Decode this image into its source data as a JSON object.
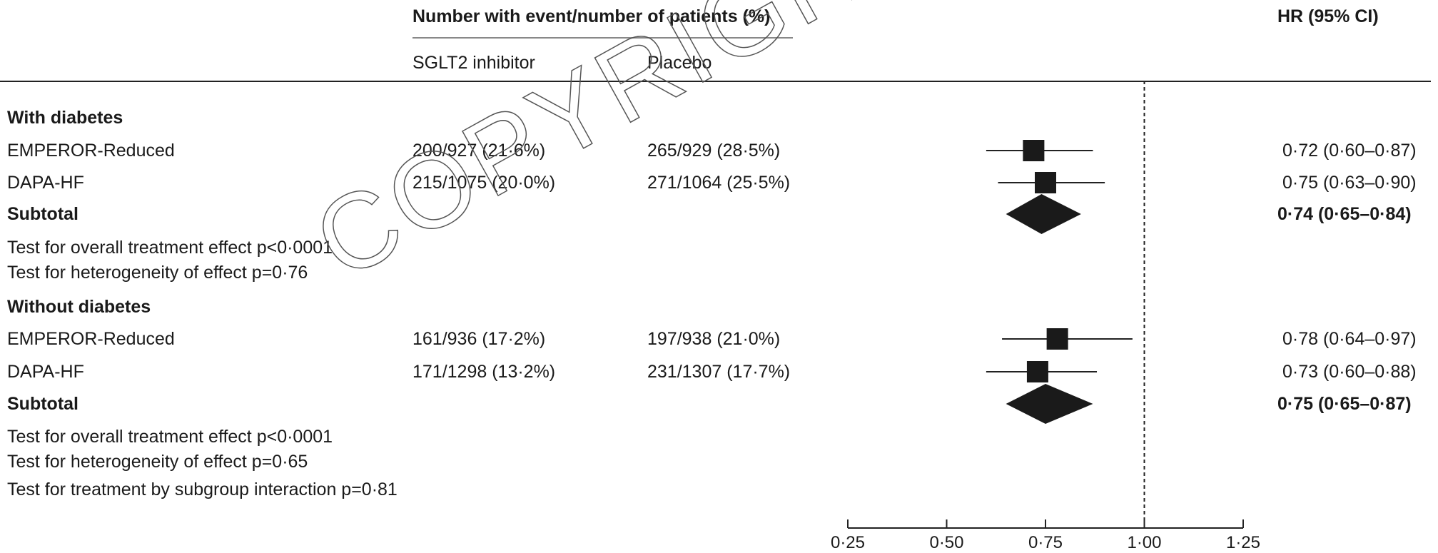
{
  "header": {
    "group_title": "Number with event/number of patients (%)",
    "col_sglt2": "SGLT2 inhibitor",
    "col_placebo": "Placebo",
    "col_hr": "HR (95% CI)"
  },
  "watermark": "COPYRIGHT",
  "chart_data": {
    "type": "forest",
    "xlim": [
      0.25,
      1.25
    ],
    "xticks": [
      "0·25",
      "0·50",
      "0·75",
      "1·00",
      "1·25"
    ],
    "xtick_values": [
      0.25,
      0.5,
      0.75,
      1.0,
      1.25
    ],
    "reference_line": 1.0,
    "groups": [
      {
        "name": "With diabetes",
        "studies": [
          {
            "study": "EMPEROR-Reduced",
            "sglt2": "200/927 (21·6%)",
            "placebo": "265/929 (28·5%)",
            "hr_text": "0·72 (0·60–0·87)",
            "hr": 0.72,
            "lo": 0.6,
            "hi": 0.87
          },
          {
            "study": "DAPA-HF",
            "sglt2": "215/1075 (20·0%)",
            "placebo": "271/1064 (25·5%)",
            "hr_text": "0·75 (0·63–0·90)",
            "hr": 0.75,
            "lo": 0.63,
            "hi": 0.9
          }
        ],
        "subtotal": {
          "label": "Subtotal",
          "hr_text": "0·74 (0·65–0·84)",
          "hr": 0.74,
          "lo": 0.65,
          "hi": 0.84
        },
        "tests": [
          "Test for overall treatment effect p<0·0001",
          "Test for heterogeneity of effect p=0·76"
        ]
      },
      {
        "name": "Without diabetes",
        "studies": [
          {
            "study": "EMPEROR-Reduced",
            "sglt2": "161/936 (17·2%)",
            "placebo": "197/938 (21·0%)",
            "hr_text": "0·78 (0·64–0·97)",
            "hr": 0.78,
            "lo": 0.64,
            "hi": 0.97
          },
          {
            "study": "DAPA-HF",
            "sglt2": "171/1298 (13·2%)",
            "placebo": "231/1307 (17·7%)",
            "hr_text": "0·73 (0·60–0·88)",
            "hr": 0.73,
            "lo": 0.6,
            "hi": 0.88
          }
        ],
        "subtotal": {
          "label": "Subtotal",
          "hr_text": "0·75 (0·65–0·87)",
          "hr": 0.75,
          "lo": 0.65,
          "hi": 0.87
        },
        "tests": [
          "Test for overall treatment effect p<0·0001",
          "Test for heterogeneity of effect p=0·65",
          "Test for treatment by subgroup interaction p=0·81"
        ]
      }
    ]
  }
}
